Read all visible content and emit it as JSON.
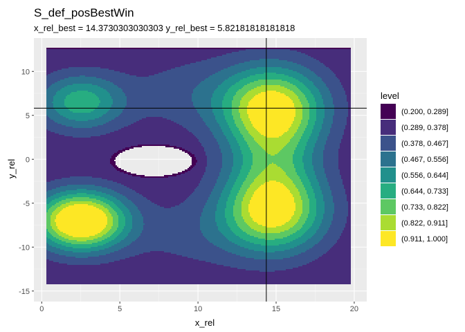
{
  "chart_data": {
    "type": "filled-contour",
    "title": "S_def_posBestWin",
    "subtitle": "x_rel_best = 14.3730303030303 y_rel_best = 5.82181818181818",
    "xlabel": "x_rel",
    "ylabel": "y_rel",
    "xlim": [
      -0.5,
      20.8
    ],
    "ylim": [
      -16.2,
      13.8
    ],
    "x_ticks": [
      0,
      5,
      10,
      15,
      20
    ],
    "x_tick_labels": [
      "0",
      "5",
      "10",
      "15",
      "20"
    ],
    "y_ticks": [
      -15,
      -10,
      -5,
      0,
      5,
      10
    ],
    "y_tick_labels": [
      "-15",
      "-10",
      "-5",
      "0",
      "5",
      "10"
    ],
    "grid": true,
    "best_point": {
      "x": 14.3730303030303,
      "y": 5.82181818181818
    },
    "legend": {
      "title": "level",
      "placement": "right",
      "items": [
        {
          "label": "(0.200, 0.289]",
          "color": "#440154"
        },
        {
          "label": "(0.289, 0.378]",
          "color": "#472D7B"
        },
        {
          "label": "(0.378, 0.467]",
          "color": "#3B528B"
        },
        {
          "label": "(0.467, 0.556]",
          "color": "#2C728E"
        },
        {
          "label": "(0.556, 0.644]",
          "color": "#21908C"
        },
        {
          "label": "(0.644, 0.733]",
          "color": "#27AD81"
        },
        {
          "label": "(0.733, 0.822]",
          "color": "#5DC863"
        },
        {
          "label": "(0.822, 0.911]",
          "color": "#AADC32"
        },
        {
          "label": "(0.911, 1.000]",
          "color": "#FDE725"
        }
      ]
    },
    "level_breaks": [
      0.2,
      0.289,
      0.378,
      0.467,
      0.556,
      0.644,
      0.733,
      0.822,
      0.911,
      1.0
    ],
    "peaks": [
      {
        "x": 2.5,
        "y": -7.0,
        "level": 1.0
      },
      {
        "x": 2.5,
        "y": 6.5,
        "level": 0.7
      },
      {
        "x": 14.8,
        "y": 6.0,
        "level": 1.0
      },
      {
        "x": 14.8,
        "y": -6.0,
        "level": 1.0
      },
      {
        "x": 14.8,
        "y": 0.0,
        "level": 0.85
      }
    ],
    "hole": {
      "x": 7.2,
      "y": -0.2
    },
    "region": {
      "x_min": 0.3,
      "x_max": 19.8,
      "y_min": -14.2,
      "y_max": 12.6
    }
  }
}
